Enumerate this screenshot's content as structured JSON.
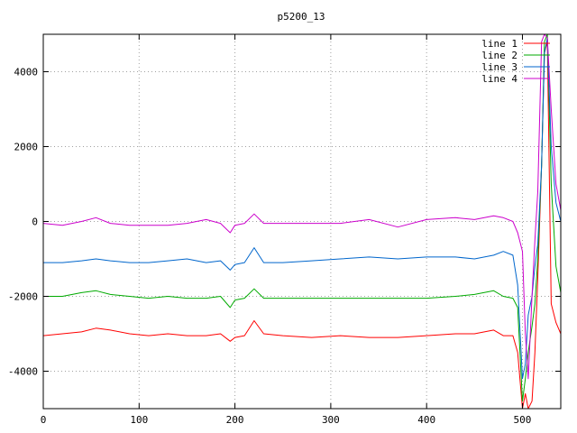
{
  "chart_data": {
    "type": "line",
    "title": "p5200_13",
    "xlabel": "",
    "ylabel": "",
    "xlim": [
      0,
      540
    ],
    "ylim": [
      -5000,
      5000
    ],
    "x_ticks": [
      0,
      100,
      200,
      300,
      400,
      500
    ],
    "y_ticks": [
      -4000,
      -2000,
      0,
      2000,
      4000
    ],
    "grid": true,
    "legend_position": "top-right",
    "series": [
      {
        "name": "line 1",
        "color": "#ff0000",
        "x": [
          0,
          20,
          40,
          55,
          70,
          90,
          110,
          130,
          150,
          170,
          185,
          195,
          200,
          210,
          220,
          230,
          250,
          280,
          310,
          340,
          370,
          400,
          430,
          450,
          470,
          480,
          490,
          495,
          500,
          503,
          506,
          510,
          513,
          516,
          520,
          523,
          526,
          530,
          535,
          540
        ],
        "y": [
          -3050,
          -3000,
          -2950,
          -2850,
          -2900,
          -3000,
          -3050,
          -3000,
          -3050,
          -3050,
          -3000,
          -3200,
          -3100,
          -3050,
          -2650,
          -3000,
          -3050,
          -3100,
          -3050,
          -3100,
          -3100,
          -3050,
          -3000,
          -3000,
          -2900,
          -3050,
          -3050,
          -3500,
          -5000,
          -4600,
          -5000,
          -4800,
          -3500,
          -1500,
          1500,
          4500,
          4800,
          -2200,
          -2700,
          -3000
        ]
      },
      {
        "name": "line 2",
        "color": "#00aa00",
        "x": [
          0,
          20,
          40,
          55,
          70,
          90,
          110,
          130,
          150,
          170,
          185,
          195,
          200,
          210,
          220,
          230,
          250,
          280,
          310,
          340,
          370,
          400,
          430,
          450,
          470,
          480,
          490,
          495,
          500,
          503,
          506,
          510,
          513,
          516,
          520,
          523,
          526,
          530,
          535,
          540
        ],
        "y": [
          -2000,
          -2000,
          -1900,
          -1850,
          -1950,
          -2000,
          -2050,
          -2000,
          -2050,
          -2050,
          -2000,
          -2300,
          -2100,
          -2050,
          -1800,
          -2050,
          -2050,
          -2050,
          -2050,
          -2050,
          -2050,
          -2050,
          -2000,
          -1950,
          -1850,
          -2000,
          -2050,
          -2300,
          -4800,
          -4200,
          -3500,
          -2800,
          -2200,
          -1000,
          1500,
          4800,
          5000,
          1000,
          -1200,
          -1900
        ]
      },
      {
        "name": "line 3",
        "color": "#0066cc",
        "x": [
          0,
          20,
          40,
          55,
          70,
          90,
          110,
          130,
          150,
          170,
          185,
          195,
          200,
          210,
          220,
          230,
          250,
          280,
          310,
          340,
          370,
          400,
          430,
          450,
          470,
          480,
          490,
          495,
          500,
          503,
          506,
          510,
          513,
          516,
          520,
          523,
          526,
          530,
          535,
          540
        ],
        "y": [
          -1100,
          -1100,
          -1050,
          -1000,
          -1050,
          -1100,
          -1100,
          -1050,
          -1000,
          -1100,
          -1050,
          -1300,
          -1150,
          -1100,
          -700,
          -1100,
          -1100,
          -1050,
          -1000,
          -950,
          -1000,
          -950,
          -950,
          -1000,
          -900,
          -800,
          -900,
          -1700,
          -4200,
          -3800,
          -2500,
          -2000,
          -1200,
          -600,
          1500,
          4500,
          4900,
          2000,
          500,
          0
        ]
      },
      {
        "name": "line 4",
        "color": "#cc00cc",
        "x": [
          0,
          20,
          40,
          55,
          70,
          90,
          110,
          130,
          150,
          170,
          185,
          195,
          200,
          210,
          220,
          230,
          250,
          280,
          310,
          340,
          370,
          400,
          430,
          450,
          470,
          480,
          490,
          495,
          500,
          503,
          506,
          510,
          513,
          516,
          520,
          523,
          526,
          530,
          535,
          540
        ],
        "y": [
          -50,
          -100,
          0,
          100,
          -50,
          -100,
          -100,
          -100,
          -50,
          50,
          -50,
          -300,
          -100,
          -50,
          200,
          -50,
          -50,
          -50,
          -50,
          50,
          -150,
          50,
          100,
          50,
          150,
          100,
          0,
          -300,
          -800,
          -3000,
          -4200,
          -2000,
          -500,
          800,
          4800,
          5000,
          4900,
          3000,
          1000,
          300
        ]
      }
    ]
  }
}
